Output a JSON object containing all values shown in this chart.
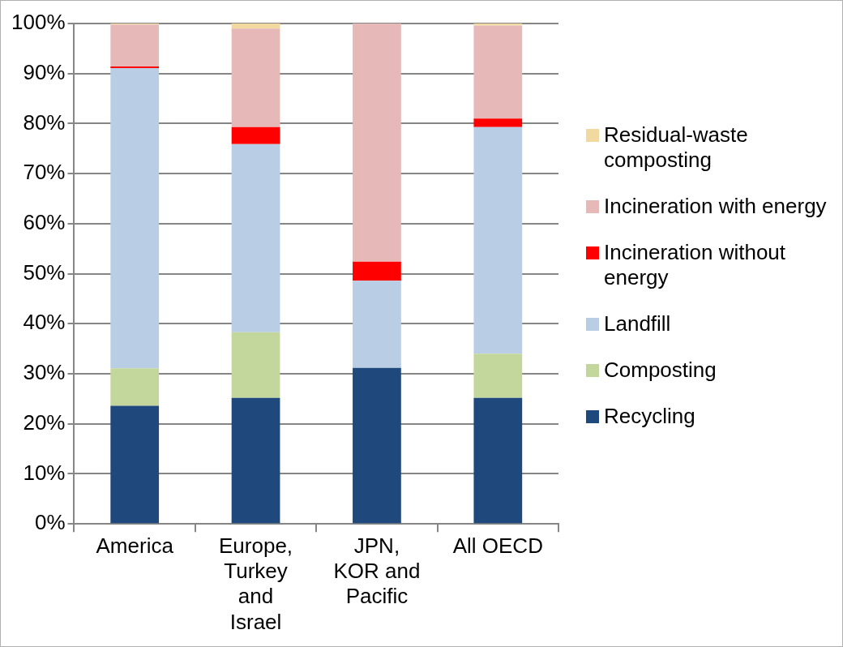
{
  "chart_data": {
    "type": "bar",
    "stacked": true,
    "categories": [
      "America",
      "Europe, Turkey and Israel",
      "JPN, KOR and Pacific",
      "All OECD"
    ],
    "series": [
      {
        "name": "Recycling",
        "color": "#1f497d",
        "values": [
          23.6,
          25.2,
          31.2,
          25.2
        ]
      },
      {
        "name": "Composting",
        "color": "#c3d69b",
        "values": [
          7.5,
          13.1,
          0,
          8.8
        ]
      },
      {
        "name": "Landfill",
        "color": "#b9cde5",
        "values": [
          60.0,
          37.6,
          17.4,
          45.3
        ]
      },
      {
        "name": "Incineration without energy",
        "color": "#ff0000",
        "values": [
          0.3,
          3.4,
          3.8,
          1.7
        ]
      },
      {
        "name": "Incineration with energy",
        "color": "#e6b9b8",
        "values": [
          8.4,
          19.7,
          47.6,
          18.6
        ]
      },
      {
        "name": "Residual-waste composting",
        "color": "#f2d9a0",
        "values": [
          0.2,
          1.0,
          0,
          0.4
        ]
      }
    ],
    "ylim": [
      0,
      100
    ],
    "yticks": [
      {
        "value": 0,
        "label": "0%"
      },
      {
        "value": 10,
        "label": "10%"
      },
      {
        "value": 20,
        "label": "20%"
      },
      {
        "value": 30,
        "label": "30%"
      },
      {
        "value": 40,
        "label": "40%"
      },
      {
        "value": 50,
        "label": "50%"
      },
      {
        "value": 60,
        "label": "60%"
      },
      {
        "value": 70,
        "label": "70%"
      },
      {
        "value": 80,
        "label": "80%"
      },
      {
        "value": 90,
        "label": "90%"
      },
      {
        "value": 100,
        "label": "100%"
      }
    ],
    "grid": "y",
    "legend": "right"
  }
}
